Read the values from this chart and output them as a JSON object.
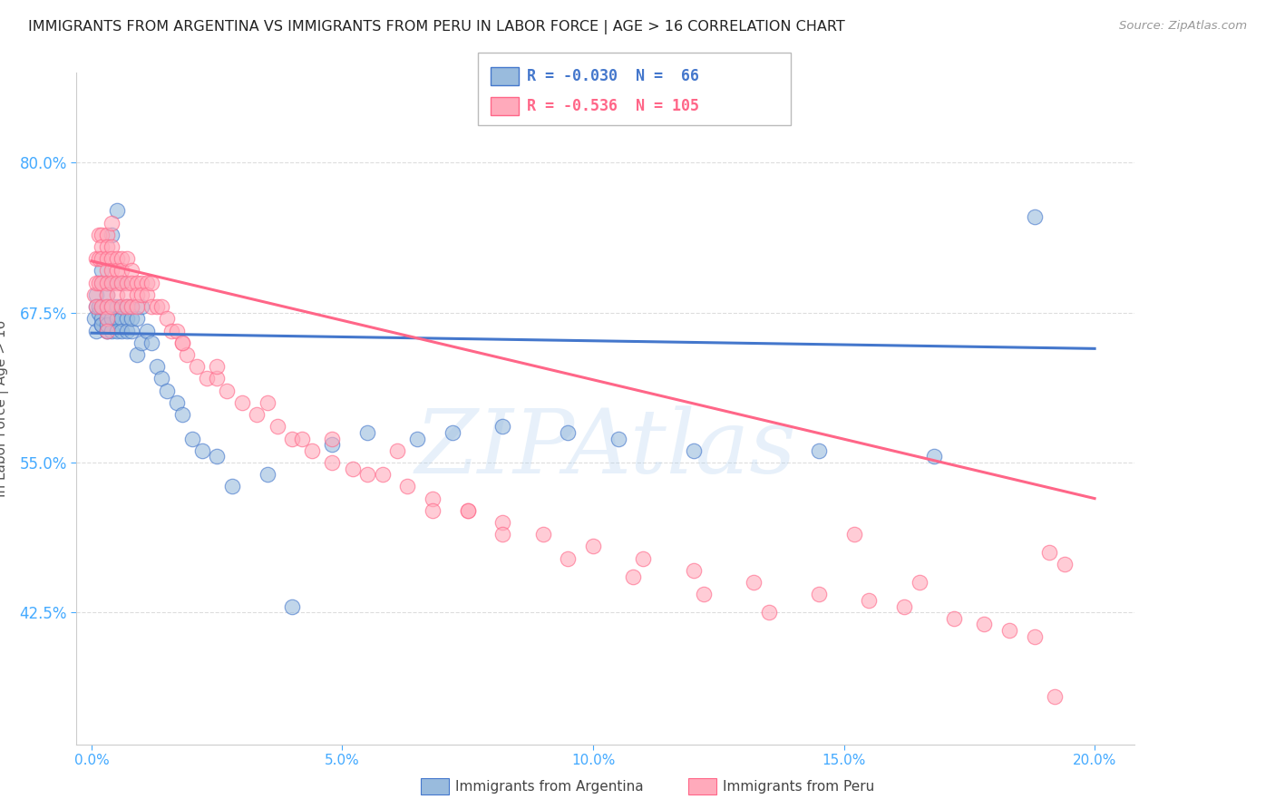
{
  "title": "IMMIGRANTS FROM ARGENTINA VS IMMIGRANTS FROM PERU IN LABOR FORCE | AGE > 16 CORRELATION CHART",
  "source": "Source: ZipAtlas.com",
  "ylabel": "In Labor Force | Age > 16",
  "watermark": "ZIPAtlas",
  "argentina_R": -0.03,
  "argentina_N": 66,
  "peru_R": -0.536,
  "peru_N": 105,
  "blue_color": "#99BBDD",
  "pink_color": "#FFAABB",
  "blue_line_color": "#4477CC",
  "pink_line_color": "#FF6688",
  "axis_label_color": "#44AAFF",
  "title_color": "#222222",
  "yticks": [
    0.425,
    0.55,
    0.675,
    0.8
  ],
  "ytick_labels": [
    "42.5%",
    "55.0%",
    "67.5%",
    "80.0%"
  ],
  "xticks": [
    0.0,
    0.05,
    0.1,
    0.15,
    0.2
  ],
  "xtick_labels": [
    "0.0%",
    "5.0%",
    "10.0%",
    "15.0%",
    "20.0%"
  ],
  "xlim": [
    -0.003,
    0.208
  ],
  "ylim": [
    0.315,
    0.875
  ],
  "argentina_trend_x": [
    0.0,
    0.2
  ],
  "argentina_trend_y": [
    0.658,
    0.645
  ],
  "peru_trend_x": [
    0.0,
    0.2
  ],
  "peru_trend_y": [
    0.718,
    0.52
  ],
  "argentina_x": [
    0.0005,
    0.001,
    0.001,
    0.001,
    0.0015,
    0.0015,
    0.002,
    0.002,
    0.002,
    0.002,
    0.002,
    0.002,
    0.003,
    0.003,
    0.003,
    0.003,
    0.003,
    0.003,
    0.003,
    0.004,
    0.004,
    0.004,
    0.004,
    0.004,
    0.005,
    0.005,
    0.005,
    0.005,
    0.006,
    0.006,
    0.006,
    0.006,
    0.007,
    0.007,
    0.007,
    0.008,
    0.008,
    0.008,
    0.009,
    0.009,
    0.01,
    0.01,
    0.011,
    0.012,
    0.013,
    0.014,
    0.015,
    0.017,
    0.018,
    0.02,
    0.022,
    0.025,
    0.028,
    0.035,
    0.04,
    0.048,
    0.055,
    0.065,
    0.072,
    0.082,
    0.095,
    0.105,
    0.12,
    0.145,
    0.168,
    0.188
  ],
  "argentina_y": [
    0.67,
    0.69,
    0.68,
    0.66,
    0.675,
    0.68,
    0.665,
    0.67,
    0.68,
    0.7,
    0.71,
    0.665,
    0.66,
    0.67,
    0.68,
    0.69,
    0.7,
    0.66,
    0.665,
    0.67,
    0.68,
    0.66,
    0.7,
    0.74,
    0.68,
    0.67,
    0.66,
    0.76,
    0.67,
    0.68,
    0.66,
    0.7,
    0.68,
    0.67,
    0.66,
    0.68,
    0.66,
    0.67,
    0.67,
    0.64,
    0.68,
    0.65,
    0.66,
    0.65,
    0.63,
    0.62,
    0.61,
    0.6,
    0.59,
    0.57,
    0.56,
    0.555,
    0.53,
    0.54,
    0.43,
    0.565,
    0.575,
    0.57,
    0.575,
    0.58,
    0.575,
    0.57,
    0.56,
    0.56,
    0.555,
    0.755
  ],
  "peru_x": [
    0.0005,
    0.001,
    0.001,
    0.001,
    0.0015,
    0.0015,
    0.0015,
    0.002,
    0.002,
    0.002,
    0.002,
    0.002,
    0.003,
    0.003,
    0.003,
    0.003,
    0.003,
    0.003,
    0.003,
    0.003,
    0.003,
    0.004,
    0.004,
    0.004,
    0.004,
    0.004,
    0.004,
    0.005,
    0.005,
    0.005,
    0.005,
    0.006,
    0.006,
    0.006,
    0.006,
    0.007,
    0.007,
    0.007,
    0.007,
    0.008,
    0.008,
    0.008,
    0.009,
    0.009,
    0.009,
    0.01,
    0.01,
    0.011,
    0.011,
    0.012,
    0.012,
    0.013,
    0.014,
    0.015,
    0.016,
    0.017,
    0.018,
    0.019,
    0.021,
    0.023,
    0.025,
    0.027,
    0.03,
    0.033,
    0.037,
    0.04,
    0.044,
    0.048,
    0.052,
    0.058,
    0.063,
    0.068,
    0.075,
    0.082,
    0.09,
    0.1,
    0.11,
    0.12,
    0.132,
    0.145,
    0.155,
    0.162,
    0.172,
    0.178,
    0.183,
    0.188,
    0.191,
    0.194,
    0.152,
    0.165,
    0.061,
    0.075,
    0.042,
    0.055,
    0.068,
    0.082,
    0.095,
    0.108,
    0.122,
    0.135,
    0.048,
    0.035,
    0.025,
    0.018,
    0.192
  ],
  "peru_y": [
    0.69,
    0.72,
    0.7,
    0.68,
    0.74,
    0.72,
    0.7,
    0.74,
    0.73,
    0.72,
    0.7,
    0.68,
    0.74,
    0.73,
    0.72,
    0.71,
    0.7,
    0.69,
    0.68,
    0.67,
    0.66,
    0.75,
    0.73,
    0.72,
    0.71,
    0.7,
    0.68,
    0.72,
    0.71,
    0.7,
    0.69,
    0.72,
    0.71,
    0.7,
    0.68,
    0.72,
    0.7,
    0.69,
    0.68,
    0.71,
    0.7,
    0.68,
    0.7,
    0.69,
    0.68,
    0.7,
    0.69,
    0.7,
    0.69,
    0.7,
    0.68,
    0.68,
    0.68,
    0.67,
    0.66,
    0.66,
    0.65,
    0.64,
    0.63,
    0.62,
    0.62,
    0.61,
    0.6,
    0.59,
    0.58,
    0.57,
    0.56,
    0.55,
    0.545,
    0.54,
    0.53,
    0.52,
    0.51,
    0.5,
    0.49,
    0.48,
    0.47,
    0.46,
    0.45,
    0.44,
    0.435,
    0.43,
    0.42,
    0.415,
    0.41,
    0.405,
    0.475,
    0.465,
    0.49,
    0.45,
    0.56,
    0.51,
    0.57,
    0.54,
    0.51,
    0.49,
    0.47,
    0.455,
    0.44,
    0.425,
    0.57,
    0.6,
    0.63,
    0.65,
    0.355
  ]
}
